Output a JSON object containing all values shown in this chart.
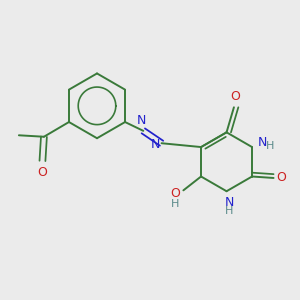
{
  "background_color": "#ebebeb",
  "bond_color": "#3a7a3a",
  "n_color": "#2222cc",
  "o_color": "#cc2222",
  "h_color": "#5a8a8a",
  "figsize": [
    3.0,
    3.0
  ],
  "dpi": 100,
  "xlim": [
    0,
    10
  ],
  "ylim": [
    0,
    10
  ]
}
